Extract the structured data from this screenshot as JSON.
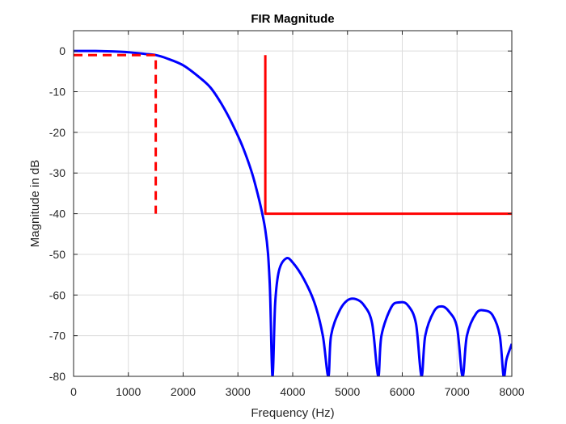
{
  "chart_data": {
    "type": "line",
    "title": "FIR Magnitude",
    "xlabel": "Frequency (Hz)",
    "ylabel": "Magnitude in dB",
    "xlim": [
      0,
      8000
    ],
    "ylim": [
      -80,
      5
    ],
    "xticks": [
      0,
      1000,
      2000,
      3000,
      4000,
      5000,
      6000,
      7000,
      8000
    ],
    "yticks": [
      0,
      -10,
      -20,
      -30,
      -40,
      -50,
      -60,
      -70,
      -80
    ],
    "xtick_labels": [
      "0",
      "1000",
      "2000",
      "3000",
      "4000",
      "5000",
      "6000",
      "7000",
      "8000"
    ],
    "ytick_labels": [
      "0",
      "-10",
      "-20",
      "-30",
      "-40",
      "-50",
      "-60",
      "-70",
      "-80"
    ],
    "grid": true,
    "colors": {
      "response": "#0000ff",
      "spec": "#ff0000",
      "grid": "#dcdcdc",
      "axes": "#262626"
    },
    "series": [
      {
        "style": "solid",
        "color": "#0000ff",
        "points": [
          [
            0,
            0
          ],
          [
            400,
            0
          ],
          [
            700,
            -0.1
          ],
          [
            1000,
            -0.3
          ],
          [
            1300,
            -0.7
          ],
          [
            1500,
            -1.0
          ],
          [
            1700,
            -1.8
          ],
          [
            2000,
            -3.5
          ],
          [
            2300,
            -6.5
          ],
          [
            2500,
            -9.0
          ],
          [
            2700,
            -13.0
          ],
          [
            2900,
            -18.0
          ],
          [
            3100,
            -24.0
          ],
          [
            3300,
            -32.0
          ],
          [
            3500,
            -44.0
          ],
          [
            3580,
            -57.0
          ],
          [
            3630,
            -80
          ],
          [
            3680,
            -62.0
          ],
          [
            3750,
            -54.0
          ],
          [
            3880,
            -51.0
          ],
          [
            4000,
            -52.0
          ],
          [
            4200,
            -56.0
          ],
          [
            4400,
            -62.0
          ],
          [
            4550,
            -70.0
          ],
          [
            4650,
            -80
          ],
          [
            4700,
            -70.0
          ],
          [
            4850,
            -64.0
          ],
          [
            5000,
            -61.3
          ],
          [
            5150,
            -61.0
          ],
          [
            5300,
            -62.5
          ],
          [
            5450,
            -67.0
          ],
          [
            5560,
            -80
          ],
          [
            5620,
            -70.0
          ],
          [
            5800,
            -63.0
          ],
          [
            5950,
            -61.8
          ],
          [
            6100,
            -62.5
          ],
          [
            6250,
            -67.0
          ],
          [
            6350,
            -80
          ],
          [
            6420,
            -70.0
          ],
          [
            6580,
            -64.0
          ],
          [
            6720,
            -62.8
          ],
          [
            6850,
            -64.0
          ],
          [
            7000,
            -68.0
          ],
          [
            7100,
            -80
          ],
          [
            7180,
            -70.0
          ],
          [
            7350,
            -64.5
          ],
          [
            7500,
            -63.8
          ],
          [
            7650,
            -65.0
          ],
          [
            7780,
            -70.0
          ],
          [
            7850,
            -80
          ],
          [
            7900,
            -76.0
          ],
          [
            7960,
            -73.5
          ],
          [
            8000,
            -72.0
          ]
        ]
      },
      {
        "style": "dashed",
        "color": "#ff0000",
        "points": [
          [
            0,
            -1
          ],
          [
            1500,
            -1
          ],
          [
            1500,
            -40
          ]
        ]
      },
      {
        "style": "solid",
        "color": "#ff0000",
        "points": [
          [
            3500,
            -1
          ],
          [
            3500,
            -40
          ],
          [
            8000,
            -40
          ]
        ]
      }
    ]
  }
}
